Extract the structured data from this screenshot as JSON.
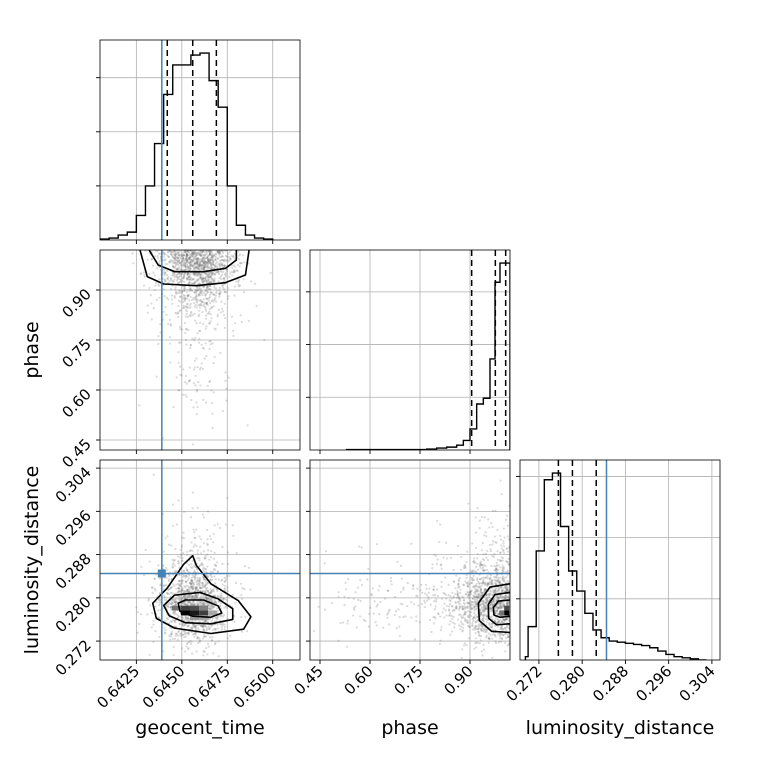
{
  "chart_data": {
    "type": "corner",
    "parameters": [
      {
        "name": "geocent_time",
        "label": "geocent_time",
        "range": [
          0.6405,
          0.6515
        ],
        "ticks": [
          0.6425,
          0.645,
          0.6475,
          0.65
        ],
        "tick_labels": [
          "0.6425",
          "0.6450",
          "0.6475",
          "0.6500"
        ]
      },
      {
        "name": "phase",
        "label": "phase",
        "range": [
          0.42,
          1.02
        ],
        "ticks": [
          0.45,
          0.6,
          0.75,
          0.9
        ],
        "tick_labels": [
          "0.45",
          "0.60",
          "0.75",
          "0.90"
        ]
      },
      {
        "name": "luminosity_distance",
        "label": "luminosity_distance",
        "range": [
          0.2685,
          0.3055
        ],
        "ticks": [
          0.272,
          0.28,
          0.288,
          0.296,
          0.304
        ],
        "tick_labels": [
          "0.272",
          "0.280",
          "0.288",
          "0.296",
          "0.304"
        ]
      }
    ],
    "truths": {
      "geocent_time": 0.6439,
      "phase": null,
      "luminosity_distance": 0.2845
    },
    "histograms": [
      {
        "parameter": "geocent_time",
        "bin_edges": [
          0.6405,
          0.641,
          0.6415,
          0.642,
          0.6425,
          0.643,
          0.6435,
          0.644,
          0.6445,
          0.645,
          0.6455,
          0.646,
          0.6465,
          0.647,
          0.6475,
          0.648,
          0.6485,
          0.649,
          0.6495,
          0.65
        ],
        "counts": [
          1,
          2,
          5,
          8,
          25,
          55,
          98,
          148,
          178,
          178,
          188,
          190,
          162,
          135,
          55,
          15,
          5,
          2,
          1
        ],
        "quantiles": [
          0.6442,
          0.6456,
          0.6469
        ]
      },
      {
        "parameter": "phase",
        "bin_edges": [
          0.77,
          0.8,
          0.83,
          0.86,
          0.88,
          0.9,
          0.92,
          0.94,
          0.96,
          0.975,
          0.99,
          1.0,
          1.02
        ],
        "counts": [
          1,
          2,
          3,
          5,
          10,
          22,
          48,
          54,
          95,
          175,
          195,
          195
        ],
        "pre_bins": {
          "start": 0.53,
          "end": 0.77,
          "count": 0.5
        },
        "quantiles": [
          0.905,
          0.976,
          1.007
        ]
      },
      {
        "parameter": "luminosity_distance",
        "bin_edges": [
          0.2695,
          0.27,
          0.2715,
          0.273,
          0.2745,
          0.276,
          0.2775,
          0.279,
          0.2805,
          0.282,
          0.2835,
          0.285,
          0.2865,
          0.288,
          0.2895,
          0.291,
          0.2925,
          0.294,
          0.2955,
          0.297,
          0.2985,
          0.3,
          0.3015,
          0.303
        ],
        "counts": [
          3,
          30,
          98,
          162,
          168,
          120,
          80,
          62,
          42,
          27,
          20,
          17,
          16,
          15,
          14,
          13,
          11,
          8,
          5,
          3,
          2,
          1,
          0
        ],
        "quantiles": [
          0.2756,
          0.2782,
          0.2826
        ]
      }
    ],
    "scatter_2d": [
      {
        "x": "geocent_time",
        "y": "phase",
        "center": [
          0.6458,
          0.985
        ],
        "spread": [
          0.00095,
          0.07
        ],
        "contours": [
          [
            [
              0.6432,
              1.02
            ],
            [
              0.6437,
              0.975
            ],
            [
              0.6446,
              0.955
            ],
            [
              0.6462,
              0.955
            ],
            [
              0.6474,
              0.965
            ],
            [
              0.648,
              0.99
            ],
            [
              0.648,
              1.02
            ]
          ],
          [
            [
              0.6427,
              1.02
            ],
            [
              0.6431,
              0.94
            ],
            [
              0.644,
              0.918
            ],
            [
              0.6458,
              0.913
            ],
            [
              0.6474,
              0.922
            ],
            [
              0.6485,
              0.945
            ],
            [
              0.6487,
              1.02
            ]
          ]
        ]
      },
      {
        "x": "geocent_time",
        "y": "luminosity_distance",
        "center": [
          0.6457,
          0.278
        ],
        "spread": [
          0.00085,
          0.0028
        ],
        "contours": [
          [
            [
              0.6448,
              0.279
            ],
            [
              0.6452,
              0.2796
            ],
            [
              0.6462,
              0.2796
            ],
            [
              0.647,
              0.2785
            ],
            [
              0.6472,
              0.2772
            ],
            [
              0.6466,
              0.2764
            ],
            [
              0.6456,
              0.2766
            ],
            [
              0.6449,
              0.2775
            ]
          ],
          [
            [
              0.644,
              0.2786
            ],
            [
              0.6446,
              0.2805
            ],
            [
              0.646,
              0.281
            ],
            [
              0.647,
              0.2798
            ],
            [
              0.6478,
              0.278
            ],
            [
              0.6478,
              0.276
            ],
            [
              0.6466,
              0.2752
            ],
            [
              0.6452,
              0.2754
            ],
            [
              0.6443,
              0.2767
            ]
          ],
          [
            [
              0.6434,
              0.279
            ],
            [
              0.6442,
              0.2818
            ],
            [
              0.6451,
              0.2862
            ],
            [
              0.6456,
              0.2878
            ],
            [
              0.6458,
              0.286
            ],
            [
              0.6466,
              0.2826
            ],
            [
              0.6481,
              0.2795
            ],
            [
              0.6488,
              0.2765
            ],
            [
              0.6484,
              0.2742
            ],
            [
              0.6466,
              0.2734
            ],
            [
              0.6446,
              0.2744
            ],
            [
              0.6436,
              0.2762
            ]
          ]
        ],
        "hist_blocks": [
          [
            0.6452,
            0.2772,
            1.0
          ],
          [
            0.6457,
            0.2772,
            0.9
          ],
          [
            0.6462,
            0.2772,
            0.75
          ],
          [
            0.6447,
            0.2781,
            0.55
          ],
          [
            0.6452,
            0.2781,
            0.75
          ],
          [
            0.6457,
            0.2781,
            0.7
          ],
          [
            0.6462,
            0.2781,
            0.5
          ],
          [
            0.6457,
            0.2763,
            0.4
          ],
          [
            0.6462,
            0.2763,
            0.35
          ],
          [
            0.6467,
            0.2772,
            0.35
          ]
        ]
      },
      {
        "x": "phase",
        "y": "luminosity_distance",
        "center": [
          0.985,
          0.278
        ],
        "spread": [
          0.07,
          0.0028
        ],
        "contours": [
          [
            [
              1.02,
              0.2796
            ],
            [
              0.985,
              0.2794
            ],
            [
              0.97,
              0.2782
            ],
            [
              0.972,
              0.2768
            ],
            [
              0.99,
              0.2764
            ],
            [
              1.02,
              0.2766
            ]
          ],
          [
            [
              1.02,
              0.281
            ],
            [
              0.975,
              0.2806
            ],
            [
              0.955,
              0.2788
            ],
            [
              0.956,
              0.2762
            ],
            [
              0.98,
              0.275
            ],
            [
              1.02,
              0.2752
            ]
          ],
          [
            [
              1.02,
              0.2826
            ],
            [
              0.96,
              0.282
            ],
            [
              0.925,
              0.279
            ],
            [
              0.928,
              0.2758
            ],
            [
              0.965,
              0.2738
            ],
            [
              1.02,
              0.2736
            ]
          ]
        ],
        "hist_blocks": [
          [
            1.01,
            0.2772,
            1.0
          ],
          [
            1.01,
            0.2781,
            0.7
          ],
          [
            0.995,
            0.2772,
            0.55
          ]
        ]
      }
    ]
  }
}
